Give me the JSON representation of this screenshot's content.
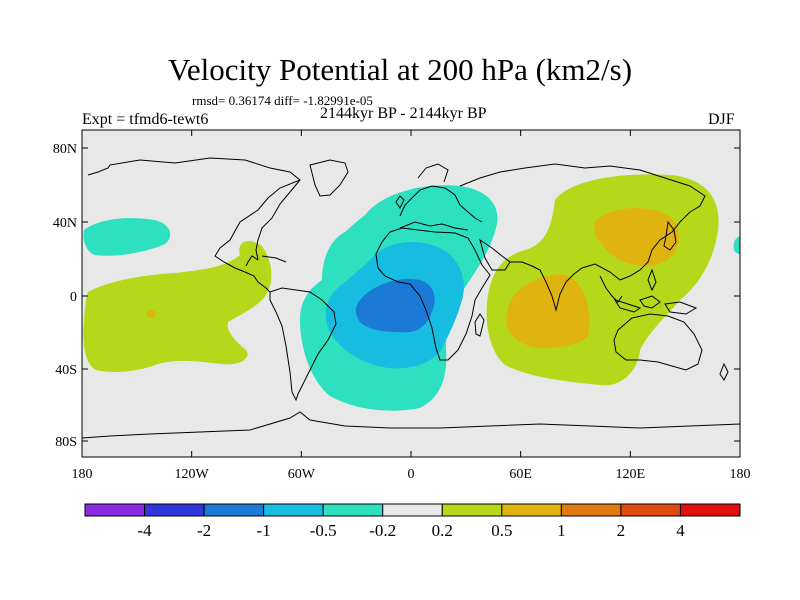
{
  "title": "Velocity Potential at 200 hPa (km2/s)",
  "stats": {
    "rmsd_label": "rmsd=",
    "rmsd": "0.36174",
    "diff_label": "diff=",
    "diff": "-1.82991e-05"
  },
  "experiment": "Expt = tfmd6-tewt6",
  "period": "2144kyr BP - 2144kyr BP",
  "season": "DJF",
  "map": {
    "background_color": "#e8e8e8",
    "lon_ticks": [
      "180",
      "120W",
      "60W",
      "0",
      "60E",
      "120E",
      "180"
    ],
    "lat_ticks": [
      "80N",
      "40N",
      "0",
      "40S",
      "80S"
    ]
  },
  "colorbar": {
    "colors": [
      "#8a2be2",
      "#2f36dc",
      "#1a7ad6",
      "#17bde0",
      "#2ce0c0",
      "#e8e8e8",
      "#b5d91a",
      "#e0b40e",
      "#e07a10",
      "#e04a10",
      "#e01010"
    ],
    "labels": [
      "-4",
      "-2",
      "-1",
      "-0.5",
      "-0.2",
      "0.2",
      "0.5",
      "1",
      "2",
      "4"
    ]
  }
}
